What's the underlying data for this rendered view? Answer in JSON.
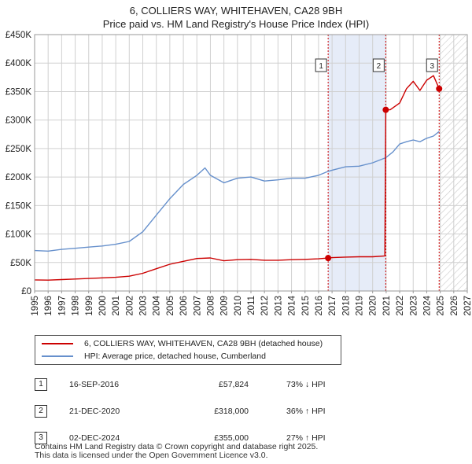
{
  "title": {
    "line1": "6, COLLIERS WAY, WHITEHAVEN, CA28 9BH",
    "line2": "Price paid vs. HM Land Registry's House Price Index (HPI)"
  },
  "colors": {
    "property": "#cc0000",
    "hpi": "#6690cc",
    "shade": "#e6ecf8",
    "grid": "#d0d0d0"
  },
  "legend": {
    "property_label": "6, COLLIERS WAY, WHITEHAVEN, CA28 9BH (detached house)",
    "hpi_label": "HPI: Average price, detached house, Cumberland"
  },
  "sales": [
    {
      "num": "1",
      "date": "16-SEP-2016",
      "price": "£57,824",
      "hpi": "73% ↓ HPI"
    },
    {
      "num": "2",
      "date": "21-DEC-2020",
      "price": "£318,000",
      "hpi": "36% ↑ HPI"
    },
    {
      "num": "3",
      "date": "02-DEC-2024",
      "price": "£355,000",
      "hpi": "27% ↑ HPI"
    }
  ],
  "footer": {
    "line1": "Contains HM Land Registry data © Crown copyright and database right 2025.",
    "line2": "This data is licensed under the Open Government Licence v3.0."
  },
  "chart_data": {
    "type": "line",
    "title": "Price paid vs. HM Land Registry's House Price Index (HPI)",
    "xlabel": "",
    "ylabel": "",
    "xlim": [
      1995,
      2027
    ],
    "ylim": [
      0,
      450000
    ],
    "x_ticks": [
      1995,
      1996,
      1997,
      1998,
      1999,
      2000,
      2001,
      2002,
      2003,
      2004,
      2005,
      2006,
      2007,
      2008,
      2009,
      2010,
      2011,
      2012,
      2013,
      2014,
      2015,
      2016,
      2017,
      2018,
      2019,
      2020,
      2021,
      2022,
      2023,
      2024,
      2025,
      2026,
      2027
    ],
    "y_ticks": [
      {
        "value": 0,
        "label": "£0"
      },
      {
        "value": 50000,
        "label": "£50K"
      },
      {
        "value": 100000,
        "label": "£100K"
      },
      {
        "value": 150000,
        "label": "£150K"
      },
      {
        "value": 200000,
        "label": "£200K"
      },
      {
        "value": 250000,
        "label": "£250K"
      },
      {
        "value": 300000,
        "label": "£300K"
      },
      {
        "value": 350000,
        "label": "£350K"
      },
      {
        "value": 400000,
        "label": "£400K"
      },
      {
        "value": 450000,
        "label": "£450K"
      }
    ],
    "grid": true,
    "sale_period_shading": [
      [
        2016.71,
        2020.97
      ]
    ],
    "forecast_hatch_start": 2025.0,
    "sale_markers": [
      {
        "label": "1",
        "x": 2016.71,
        "y": 57824
      },
      {
        "label": "2",
        "x": 2020.97,
        "y": 318000
      },
      {
        "label": "3",
        "x": 2024.92,
        "y": 355000
      }
    ],
    "series": [
      {
        "name": "6, COLLIERS WAY, WHITEHAVEN, CA28 9BH (detached house)",
        "color": "#cc0000",
        "points": [
          [
            1995,
            19500
          ],
          [
            1996,
            19000
          ],
          [
            1997,
            20000
          ],
          [
            1998,
            21000
          ],
          [
            1999,
            22000
          ],
          [
            2000,
            23000
          ],
          [
            2001,
            24000
          ],
          [
            2002,
            26000
          ],
          [
            2003,
            31000
          ],
          [
            2004,
            39000
          ],
          [
            2005,
            47000
          ],
          [
            2006,
            52000
          ],
          [
            2007,
            57000
          ],
          [
            2008,
            58000
          ],
          [
            2009,
            53000
          ],
          [
            2010,
            55000
          ],
          [
            2011,
            55500
          ],
          [
            2012,
            54000
          ],
          [
            2013,
            54000
          ],
          [
            2014,
            55000
          ],
          [
            2015,
            55500
          ],
          [
            2016,
            56500
          ],
          [
            2016.71,
            57824
          ],
          [
            2017,
            58500
          ],
          [
            2018,
            59500
          ],
          [
            2019,
            60000
          ],
          [
            2020,
            60000
          ],
          [
            2020.9,
            61500
          ],
          [
            2020.97,
            318000
          ],
          [
            2021.3,
            318000
          ],
          [
            2022,
            330000
          ],
          [
            2022.5,
            355000
          ],
          [
            2023,
            368000
          ],
          [
            2023.5,
            352000
          ],
          [
            2024,
            370000
          ],
          [
            2024.5,
            378000
          ],
          [
            2024.92,
            355000
          ]
        ]
      },
      {
        "name": "HPI: Average price, detached house, Cumberland",
        "color": "#6690cc",
        "points": [
          [
            1995,
            71000
          ],
          [
            1996,
            70000
          ],
          [
            1997,
            73000
          ],
          [
            1998,
            75000
          ],
          [
            1999,
            77000
          ],
          [
            2000,
            79000
          ],
          [
            2001,
            82000
          ],
          [
            2002,
            87000
          ],
          [
            2003,
            104000
          ],
          [
            2004,
            133000
          ],
          [
            2005,
            162000
          ],
          [
            2006,
            187000
          ],
          [
            2007,
            203000
          ],
          [
            2007.6,
            216000
          ],
          [
            2008,
            203000
          ],
          [
            2009,
            190000
          ],
          [
            2010,
            198000
          ],
          [
            2011,
            200000
          ],
          [
            2012,
            193000
          ],
          [
            2013,
            195000
          ],
          [
            2014,
            198000
          ],
          [
            2015,
            198000
          ],
          [
            2016,
            203000
          ],
          [
            2016.71,
            210000
          ],
          [
            2017,
            212000
          ],
          [
            2018,
            218000
          ],
          [
            2019,
            219000
          ],
          [
            2020,
            225000
          ],
          [
            2020.97,
            234000
          ],
          [
            2021.5,
            244000
          ],
          [
            2022,
            258000
          ],
          [
            2022.5,
            262000
          ],
          [
            2023,
            265000
          ],
          [
            2023.5,
            262000
          ],
          [
            2024,
            268000
          ],
          [
            2024.5,
            272000
          ],
          [
            2024.92,
            280000
          ]
        ]
      }
    ]
  }
}
